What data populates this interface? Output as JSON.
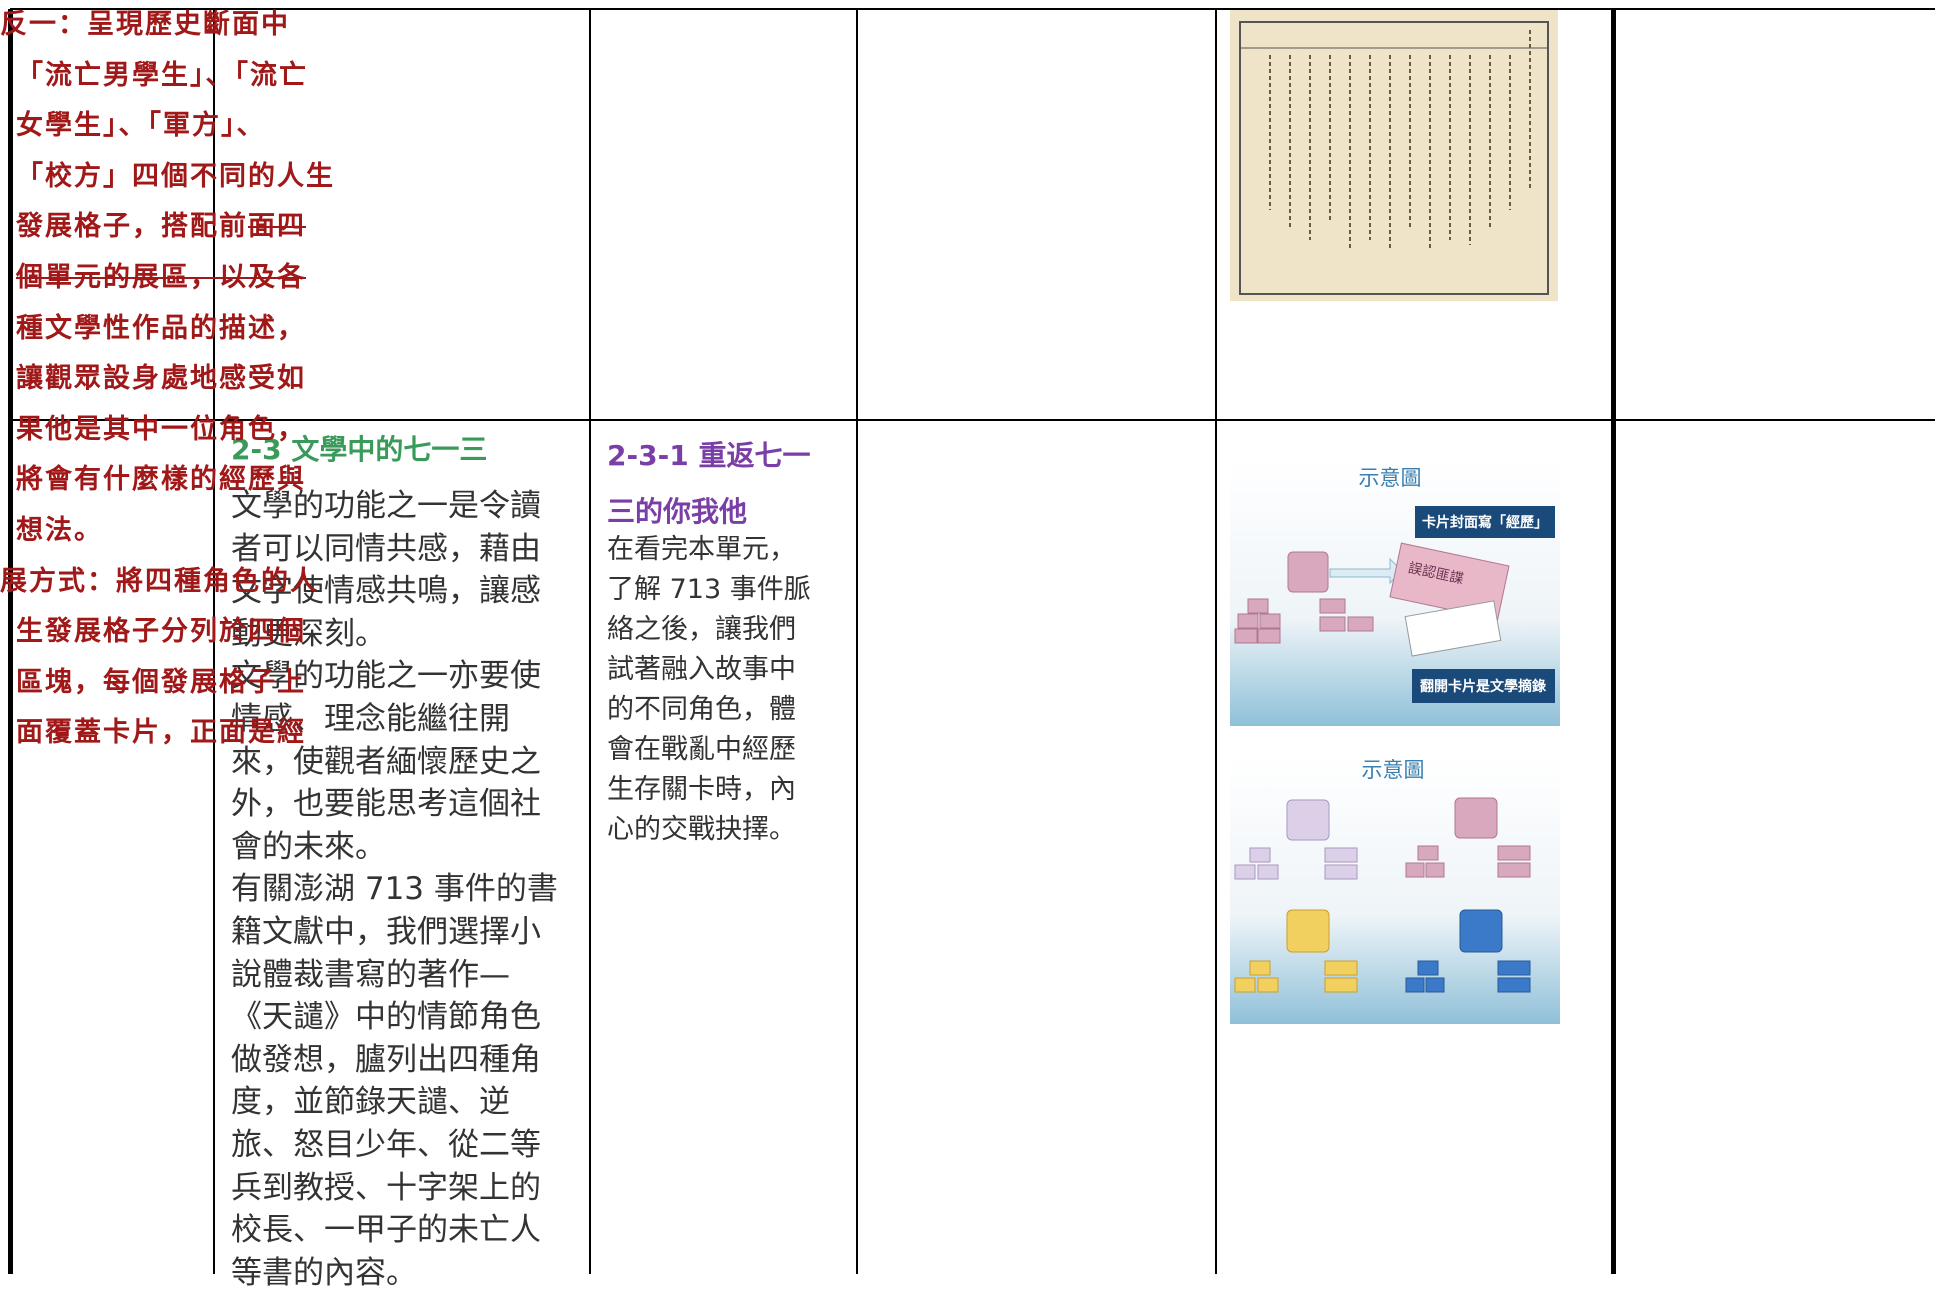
{
  "table": {
    "rows": [
      {
        "cells": []
      },
      {
        "cells": [
          {
            "title": "2-3 文學中的七一三",
            "lines": [
              "文學的功能之一是令讀",
              "者可以同情共感，藉由",
              "文字使情感共鳴，讓感",
              "動更深刻。",
              "文學的功能之一亦要使",
              "情感、理念能繼往開",
              "來，使觀者緬懷歷史之",
              "外，也要能思考這個社",
              "會的未來。",
              "有關澎湖 713 事件的書",
              "籍文獻中，我們選擇小",
              "說體裁書寫的著作—",
              "《天譴》中的情節角色",
              "做發想，臚列出四種角",
              "度，並節錄天譴、逆",
              "旅、怒目少年、從二等",
              "兵到教授、十字架上的",
              "校長、一甲子的未亡人",
              "等書的內容。"
            ]
          },
          {
            "title_lines": [
              "2-3-1 重返七一",
              "三的你我他"
            ],
            "lines": [
              "在看完本單元，",
              "了解 713 事件脈",
              "絡之後，讓我們",
              "試著融入故事中",
              "的不同角色，體",
              "會在戰亂中經歷",
              "生存關卡時，內",
              "心的交戰抉擇。"
            ]
          },
          {
            "lines": [
              "反一：呈現歷史斷面中",
              "「流亡男學生」、「流亡",
              "女學生」、「軍方」、",
              "「校方」四個不同的人生",
              "發展格子，搭配前",
              "面四",
              "個單元的展區，以及各",
              "種文學性作品的描述，",
              "讓觀眾設身處地感受如",
              "果他是其中一位角色，",
              "將會有什麼樣的經歷與",
              "想法。",
              "展方式：將四種角色的人",
              "生發展格子分列於四個",
              "區塊，每個發展格子上",
              "面覆蓋卡片，正面是經"
            ]
          },
          {
            "figure1": {
              "caption": "示意圖",
              "labels": [
                "卡片封面寫「經歷」",
                "誤認匪諜",
                "翻開卡片是文學摘錄"
              ]
            },
            "figure2": {
              "caption": "示意圖"
            }
          }
        ]
      }
    ]
  }
}
